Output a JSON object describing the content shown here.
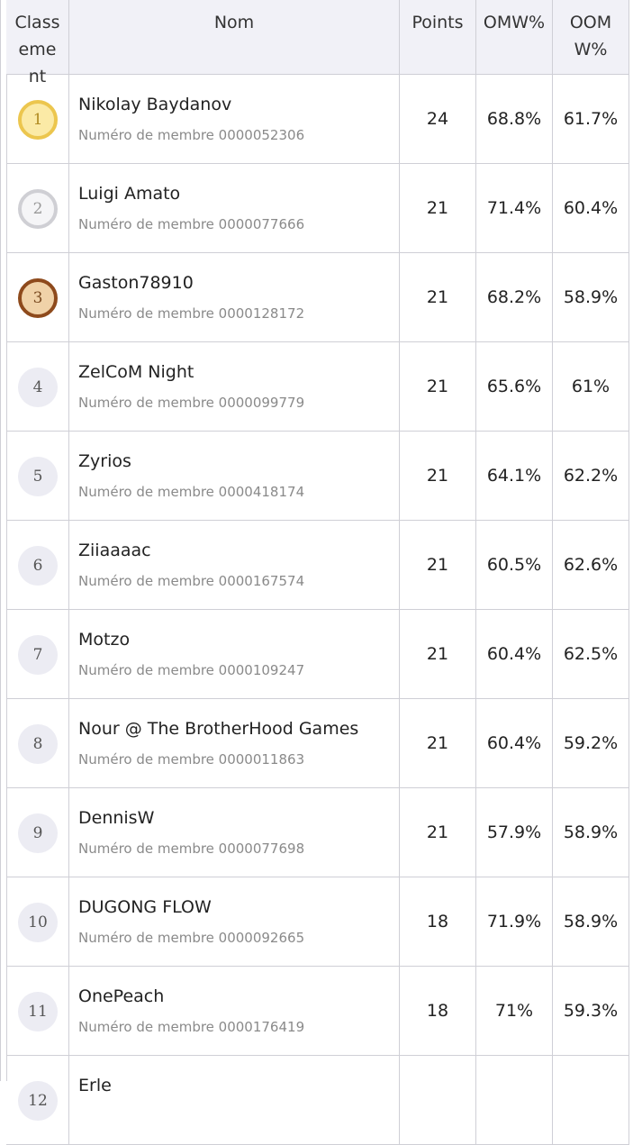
{
  "table": {
    "header": [
      "Classement",
      "Nom",
      "Points",
      "OMW%",
      "OOMW%"
    ],
    "rows": [
      {
        "rank": "1",
        "name": "Nikolay Baydanov",
        "member": "Numéro de membre 0000052306",
        "points": "24",
        "omw": "68.8%",
        "oomw": "61.7%"
      },
      {
        "rank": "2",
        "name": "Luigi Amato",
        "member": "Numéro de membre 0000077666",
        "points": "21",
        "omw": "71.4%",
        "oomw": "60.4%"
      },
      {
        "rank": "3",
        "name": "Gaston78910",
        "member": "Numéro de membre 0000128172",
        "points": "21",
        "omw": "68.2%",
        "oomw": "58.9%"
      },
      {
        "rank": "4",
        "name": "ZelCoM Night",
        "member": "Numéro de membre 0000099779",
        "points": "21",
        "omw": "65.6%",
        "oomw": "61%"
      },
      {
        "rank": "5",
        "name": "Zyrios",
        "member": "Numéro de membre 0000418174",
        "points": "21",
        "omw": "64.1%",
        "oomw": "62.2%"
      },
      {
        "rank": "6",
        "name": "Ziiaaaac",
        "member": "Numéro de membre 0000167574",
        "points": "21",
        "omw": "60.5%",
        "oomw": "62.6%"
      },
      {
        "rank": "7",
        "name": "Motzo",
        "member": "Numéro de membre 0000109247",
        "points": "21",
        "omw": "60.4%",
        "oomw": "62.5%"
      },
      {
        "rank": "8",
        "name": "Nour @ The BrotherHood Games",
        "member": "Numéro de membre 0000011863",
        "points": "21",
        "omw": "60.4%",
        "oomw": "59.2%"
      },
      {
        "rank": "9",
        "name": "DennisW",
        "member": "Numéro de membre 0000077698",
        "points": "21",
        "omw": "57.9%",
        "oomw": "58.9%"
      },
      {
        "rank": "10",
        "name": "DUGONG FLOW",
        "member": "Numéro de membre 0000092665",
        "points": "18",
        "omw": "71.9%",
        "oomw": "58.9%"
      },
      {
        "rank": "11",
        "name": "OnePeach",
        "member": "Numéro de membre 0000176419",
        "points": "18",
        "omw": "71%",
        "oomw": "59.3%"
      },
      {
        "rank": "12",
        "name": "Erle"
      }
    ]
  }
}
